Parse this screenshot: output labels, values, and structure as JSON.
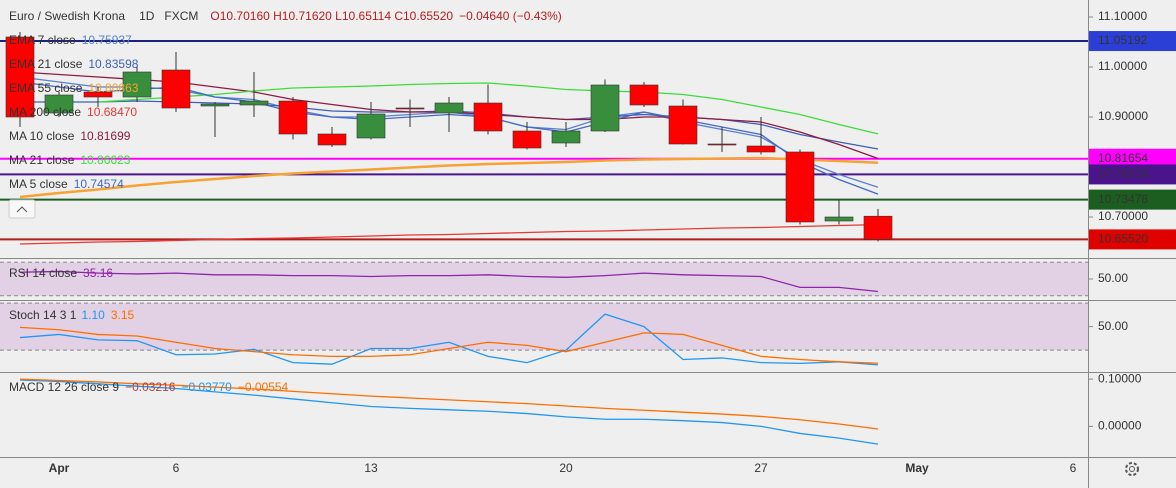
{
  "header": {
    "title": "Euro / Swedish Krona",
    "interval": "1D",
    "source": "FXCM",
    "ohlc_readout": "O10.70160 H10.71620 L10.65114 C10.65520",
    "change": "−0.04640 (−0.43%)"
  },
  "chart_data": [
    {
      "type": "candlestick",
      "categories": [
        null,
        "Apr",
        null,
        null,
        "6",
        null,
        null,
        null,
        null,
        "13",
        null,
        null,
        null,
        null,
        "20",
        null,
        null,
        null,
        null,
        "27",
        null,
        null,
        null,
        "May",
        null,
        null,
        null,
        "6"
      ],
      "open": [
        11.06,
        10.908,
        10.95,
        10.94,
        10.994,
        10.922,
        10.924,
        10.932,
        10.866,
        10.858,
        10.918,
        10.908,
        10.928,
        10.872,
        10.848,
        10.872,
        10.964,
        10.922,
        10.846,
        10.842,
        10.83,
        10.692,
        10.7016,
        null,
        null,
        null,
        null,
        null
      ],
      "high": [
        11.07,
        10.95,
        10.96,
        11.0,
        11.03,
        10.93,
        10.99,
        10.94,
        10.88,
        10.93,
        10.935,
        10.94,
        10.965,
        10.89,
        10.89,
        10.975,
        10.97,
        10.935,
        10.88,
        10.9,
        10.835,
        10.735,
        10.7162,
        null,
        null,
        null,
        null,
        null
      ],
      "low": [
        10.88,
        10.9,
        10.92,
        10.93,
        10.91,
        10.86,
        10.9,
        10.855,
        10.84,
        10.855,
        10.88,
        10.87,
        10.865,
        10.835,
        10.84,
        10.87,
        10.92,
        10.845,
        10.83,
        10.825,
        10.685,
        10.685,
        10.65114,
        null,
        null,
        null,
        null,
        null
      ],
      "close": [
        10.9,
        10.944,
        10.94,
        10.99,
        10.918,
        10.926,
        10.932,
        10.866,
        10.844,
        10.906,
        10.917,
        10.928,
        10.872,
        10.838,
        10.872,
        10.964,
        10.924,
        10.846,
        10.844,
        10.83,
        10.69,
        10.7,
        10.6552,
        null,
        null,
        null,
        null,
        null
      ],
      "up_color": "#388e3c",
      "down_color": "#ff0000",
      "series": [
        {
          "name": "EMA 7 close",
          "readout": "10.75937",
          "color": "#5b7fcf",
          "values": [
            10.98,
            10.97,
            10.96,
            10.96,
            10.955,
            10.94,
            10.935,
            10.915,
            10.9,
            10.9,
            10.905,
            10.91,
            10.9,
            10.88,
            10.875,
            10.9,
            10.91,
            10.89,
            10.875,
            10.86,
            10.815,
            10.785,
            10.7594,
            null,
            null,
            null,
            null,
            null
          ]
        },
        {
          "name": "EMA 21 close",
          "readout": "10.83598",
          "color": "#3f5fb5",
          "values": [
            10.93,
            10.93,
            10.93,
            10.932,
            10.93,
            10.928,
            10.926,
            10.92,
            10.912,
            10.91,
            10.91,
            10.912,
            10.908,
            10.9,
            10.895,
            10.9,
            10.905,
            10.9,
            10.895,
            10.885,
            10.865,
            10.85,
            10.836,
            null,
            null,
            null,
            null,
            null
          ]
        },
        {
          "name": "EMA 55 close",
          "readout": "10.80863",
          "color": "#f7a233",
          "values": [
            10.74,
            10.748,
            10.755,
            10.763,
            10.77,
            10.776,
            10.782,
            10.787,
            10.791,
            10.795,
            10.799,
            10.803,
            10.806,
            10.808,
            10.81,
            10.813,
            10.815,
            10.816,
            10.817,
            10.818,
            10.815,
            10.812,
            10.8086,
            null,
            null,
            null,
            null,
            null
          ]
        },
        {
          "name": "MA 200 close",
          "readout": "10.68470",
          "color": "#e53935",
          "values": [
            10.646,
            10.648,
            10.65,
            10.651,
            10.653,
            10.655,
            10.657,
            10.658,
            10.66,
            10.662,
            10.664,
            10.665,
            10.667,
            10.669,
            10.671,
            10.672,
            10.674,
            10.676,
            10.678,
            10.679,
            10.681,
            10.683,
            10.6847,
            null,
            null,
            null,
            null,
            null
          ]
        },
        {
          "name": "MA 10 close",
          "readout": "10.81699",
          "color": "#8e1b3f",
          "values": [
            10.99,
            10.985,
            10.98,
            10.975,
            10.97,
            10.96,
            10.95,
            10.935,
            10.925,
            10.915,
            10.91,
            10.91,
            10.905,
            10.9,
            10.895,
            10.895,
            10.9,
            10.9,
            10.895,
            10.89,
            10.87,
            10.845,
            10.817,
            null,
            null,
            null,
            null,
            null
          ]
        },
        {
          "name": "MA 21 close",
          "readout": "10.86623",
          "color": "#3ddc3d",
          "values": [
            null,
            null,
            10.93,
            10.935,
            10.94,
            10.945,
            10.952,
            10.958,
            10.96,
            10.962,
            10.965,
            10.967,
            10.968,
            10.962,
            10.955,
            10.952,
            10.95,
            10.945,
            10.935,
            10.92,
            10.905,
            10.885,
            10.8662,
            null,
            null,
            null,
            null,
            null
          ]
        },
        {
          "name": "MA 5 close",
          "readout": "10.74574",
          "color": "#4169c8",
          "values": [
            10.97,
            10.96,
            10.95,
            10.955,
            10.96,
            10.94,
            10.93,
            10.91,
            10.9,
            10.895,
            10.9,
            10.905,
            10.9,
            10.88,
            10.87,
            10.89,
            10.91,
            10.895,
            10.88,
            10.865,
            10.81,
            10.775,
            10.7457,
            null,
            null,
            null,
            null,
            null
          ]
        }
      ],
      "hlines": [
        {
          "value": 11.05192,
          "label": "11.05192",
          "color": "#1a237e",
          "label_color": "#2b3fd6"
        },
        {
          "value": 10.81654,
          "label": "10.81654",
          "color": "#ff00ff",
          "label_color": "#ff00ff"
        },
        {
          "value": 10.78518,
          "label": "10.78518",
          "color": "#4a148c",
          "label_color": "#4a148c"
        },
        {
          "value": 10.73478,
          "label": "10.73478",
          "color": "#1b5e20",
          "label_color": "#1b5e20"
        },
        {
          "value": 10.6552,
          "label": "10.65520",
          "color": "#b71c1c",
          "label_color": "#e00000"
        }
      ],
      "ylim": [
        10.618,
        11.134
      ],
      "yticks": [
        {
          "value": 11.1,
          "label": "11.10000"
        },
        {
          "value": 11.0,
          "label": "11.00000"
        },
        {
          "value": 10.9,
          "label": "10.90000"
        },
        {
          "value": 10.7,
          "label": "10.70000"
        }
      ]
    },
    {
      "type": "line",
      "title": "RSI 14 close",
      "band": [
        30,
        70
      ],
      "band_color": "#9c27b0",
      "series": [
        {
          "readout": "35.16",
          "color": "#8e24aa",
          "values": [
            58,
            59,
            57,
            56,
            57,
            55,
            55,
            54,
            54,
            53,
            54,
            54,
            55,
            53,
            52,
            54,
            57,
            55,
            54,
            53,
            40,
            40,
            35.16,
            null,
            null,
            null,
            null,
            null
          ]
        }
      ],
      "ylim": [
        25,
        75
      ],
      "yticks": [
        {
          "value": 50,
          "label": "50.00"
        }
      ]
    },
    {
      "type": "line",
      "title": "Stoch 14 3 1",
      "band": [
        20,
        80
      ],
      "band_color": "#9c27b0",
      "series": [
        {
          "readout": "1.10",
          "color": "#2196f3",
          "values": [
            36,
            40,
            33,
            32,
            14,
            15,
            21,
            4,
            2,
            22,
            22,
            30,
            12,
            4,
            20,
            66,
            50,
            8,
            10,
            4,
            3,
            5,
            1.1,
            null,
            null,
            null,
            null,
            null
          ]
        },
        {
          "readout": "3.15",
          "color": "#ff6d00",
          "values": [
            49,
            46,
            40,
            38,
            30,
            22,
            18,
            14,
            12,
            12,
            14,
            22,
            30,
            26,
            18,
            30,
            42,
            40,
            26,
            12,
            8,
            5,
            3.15,
            null,
            null,
            null,
            null,
            null
          ]
        }
      ],
      "ylim": [
        -8,
        84
      ],
      "yticks": [
        {
          "value": 50,
          "label": "50.00"
        }
      ]
    },
    {
      "type": "line",
      "title": "MACD 12 26 close 9",
      "histogram_readout": {
        "label": "−0.03216",
        "color": "#b0413e"
      },
      "series": [
        {
          "readout": "−0.03770",
          "color": "#2196f3",
          "values": [
            0.098,
            0.095,
            0.09,
            0.085,
            0.08,
            0.073,
            0.066,
            0.058,
            0.05,
            0.042,
            0.038,
            0.035,
            0.032,
            0.027,
            0.02,
            0.015,
            0.015,
            0.012,
            0.008,
            0.0,
            -0.015,
            -0.025,
            -0.0377,
            null,
            null,
            null,
            null,
            null
          ]
        },
        {
          "readout": "−0.00554",
          "color": "#ff6d00",
          "values": [
            0.1,
            0.097,
            0.094,
            0.09,
            0.087,
            0.083,
            0.079,
            0.074,
            0.069,
            0.064,
            0.06,
            0.056,
            0.052,
            0.048,
            0.043,
            0.038,
            0.034,
            0.03,
            0.026,
            0.021,
            0.014,
            0.005,
            -0.00554,
            null,
            null,
            null,
            null,
            null
          ]
        }
      ],
      "ylim": [
        -0.067,
        0.115
      ],
      "yticks": [
        {
          "value": 0.1,
          "label": "0.10000"
        },
        {
          "value": 0,
          "label": "0.00000"
        }
      ]
    }
  ]
}
